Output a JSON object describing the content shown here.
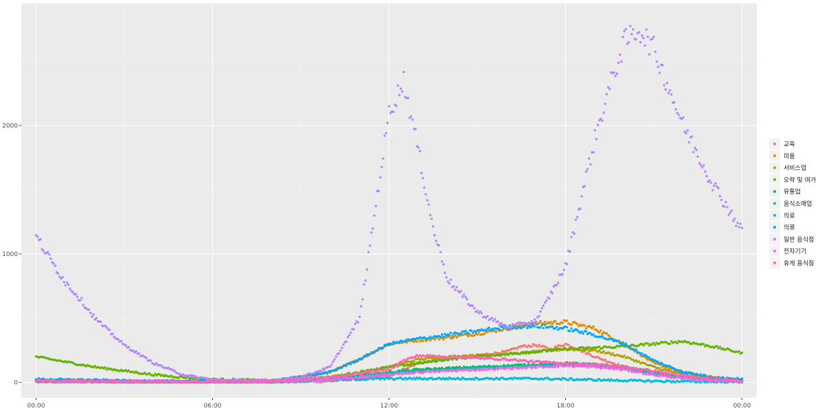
{
  "chart_data": {
    "type": "scatter",
    "title": "",
    "xlabel": "",
    "ylabel": "",
    "x_unit": "hours of day",
    "xlim": [
      -0.5,
      24.5
    ],
    "ylim": [
      -120,
      2950
    ],
    "x_ticks": [
      {
        "value": 0,
        "label": "00:00"
      },
      {
        "value": 6,
        "label": "06:00"
      },
      {
        "value": 12,
        "label": "12:00"
      },
      {
        "value": 18,
        "label": "18:00"
      },
      {
        "value": 24,
        "label": "00:00"
      }
    ],
    "y_ticks": [
      {
        "value": 0,
        "label": "0"
      },
      {
        "value": 1000,
        "label": "1000"
      },
      {
        "value": 2000,
        "label": "2000"
      }
    ],
    "grid": true,
    "legend_position": "right",
    "series": [
      {
        "name": "교육",
        "color": "#F8766D",
        "x": [
          0,
          4,
          8,
          10,
          12,
          13,
          14,
          15,
          16,
          16.5,
          17,
          17.5,
          18,
          19,
          20,
          21,
          22,
          23,
          24
        ],
        "y": [
          5,
          3,
          3,
          10,
          50,
          150,
          190,
          210,
          240,
          280,
          290,
          260,
          300,
          200,
          120,
          60,
          40,
          20,
          10
        ]
      },
      {
        "name": "미용",
        "color": "#DB8E00",
        "x": [
          0,
          4,
          8,
          10,
          11,
          12,
          13,
          14,
          15,
          16,
          17,
          18,
          19,
          20,
          21,
          22,
          23,
          24
        ],
        "y": [
          20,
          8,
          8,
          80,
          180,
          300,
          330,
          350,
          380,
          420,
          460,
          470,
          420,
          300,
          150,
          80,
          40,
          20
        ]
      },
      {
        "name": "서비스업",
        "color": "#AEA200",
        "x": [
          0,
          4,
          8,
          10,
          12,
          13,
          14,
          15,
          16,
          17,
          18,
          19,
          20,
          21,
          22,
          23,
          24
        ],
        "y": [
          10,
          5,
          5,
          40,
          120,
          180,
          200,
          210,
          220,
          240,
          260,
          250,
          200,
          120,
          60,
          30,
          15
        ]
      },
      {
        "name": "오락 및 여가",
        "color": "#64B200",
        "x": [
          0,
          1,
          2,
          3,
          4,
          5,
          6,
          8,
          10,
          12,
          14,
          16,
          17,
          18,
          19,
          20,
          21,
          22,
          23,
          24
        ],
        "y": [
          200,
          160,
          120,
          90,
          60,
          40,
          25,
          15,
          40,
          120,
          180,
          220,
          240,
          260,
          270,
          280,
          300,
          320,
          280,
          230
        ]
      },
      {
        "name": "유통업",
        "color": "#00BD5C",
        "x": [
          0,
          4,
          8,
          10,
          12,
          13,
          14,
          15,
          16,
          17,
          18,
          19,
          20,
          21,
          22,
          23,
          24
        ],
        "y": [
          10,
          5,
          5,
          30,
          80,
          100,
          110,
          120,
          130,
          140,
          150,
          140,
          120,
          80,
          40,
          20,
          10
        ]
      },
      {
        "name": "음식소매업",
        "color": "#00C1A7",
        "x": [
          0,
          4,
          8,
          10,
          12,
          13,
          14,
          15,
          16,
          17,
          18,
          19,
          20,
          21,
          22,
          23,
          24
        ],
        "y": [
          10,
          5,
          5,
          30,
          70,
          90,
          100,
          110,
          120,
          130,
          140,
          130,
          110,
          70,
          40,
          20,
          10
        ]
      },
      {
        "name": "의료",
        "color": "#00BADE",
        "x": [
          0,
          4,
          8,
          10,
          12,
          13,
          14,
          15,
          16,
          17,
          18,
          19,
          20,
          21,
          22,
          23,
          24
        ],
        "y": [
          15,
          5,
          5,
          20,
          30,
          30,
          30,
          30,
          30,
          30,
          25,
          20,
          15,
          10,
          8,
          5,
          5
        ]
      },
      {
        "name": "의류",
        "color": "#00A6FF",
        "x": [
          0,
          4,
          8,
          10,
          11,
          12,
          13,
          14,
          15,
          16,
          17,
          18,
          19,
          20,
          21,
          22,
          23,
          24
        ],
        "y": [
          25,
          10,
          10,
          80,
          180,
          300,
          340,
          370,
          400,
          430,
          440,
          420,
          370,
          300,
          170,
          80,
          40,
          25
        ]
      },
      {
        "name": "일반 음식점",
        "color": "#B385FF",
        "x": [
          0,
          0.5,
          1,
          1.5,
          2,
          3,
          4,
          5,
          6,
          7,
          8,
          9,
          10,
          11,
          11.5,
          12,
          12.5,
          13,
          13.5,
          14,
          15,
          16,
          17,
          18,
          18.5,
          19,
          19.5,
          20,
          20.5,
          21,
          22,
          23,
          24
        ],
        "y": [
          1140,
          950,
          780,
          650,
          500,
          290,
          150,
          60,
          20,
          15,
          15,
          40,
          120,
          500,
          1300,
          2100,
          2350,
          1800,
          1200,
          800,
          550,
          430,
          480,
          900,
          1400,
          1900,
          2300,
          2650,
          2750,
          2600,
          2000,
          1550,
          1180
        ]
      },
      {
        "name": "전자기기",
        "color": "#EF67EB",
        "x": [
          0,
          4,
          8,
          10,
          12,
          13,
          14,
          15,
          16,
          17,
          18,
          19,
          20,
          21,
          22,
          23,
          24
        ],
        "y": [
          10,
          5,
          5,
          20,
          60,
          80,
          90,
          100,
          110,
          120,
          130,
          120,
          100,
          60,
          30,
          15,
          10
        ]
      },
      {
        "name": "휴게 음식점",
        "color": "#FF63B6",
        "x": [
          0,
          2,
          4,
          6,
          8,
          10,
          11,
          12,
          12.5,
          13,
          14,
          15,
          16,
          17,
          18,
          19,
          20,
          21,
          22,
          23,
          24
        ],
        "y": [
          15,
          8,
          5,
          5,
          10,
          40,
          70,
          100,
          170,
          210,
          200,
          190,
          180,
          160,
          150,
          140,
          120,
          90,
          50,
          25,
          15
        ]
      }
    ]
  }
}
